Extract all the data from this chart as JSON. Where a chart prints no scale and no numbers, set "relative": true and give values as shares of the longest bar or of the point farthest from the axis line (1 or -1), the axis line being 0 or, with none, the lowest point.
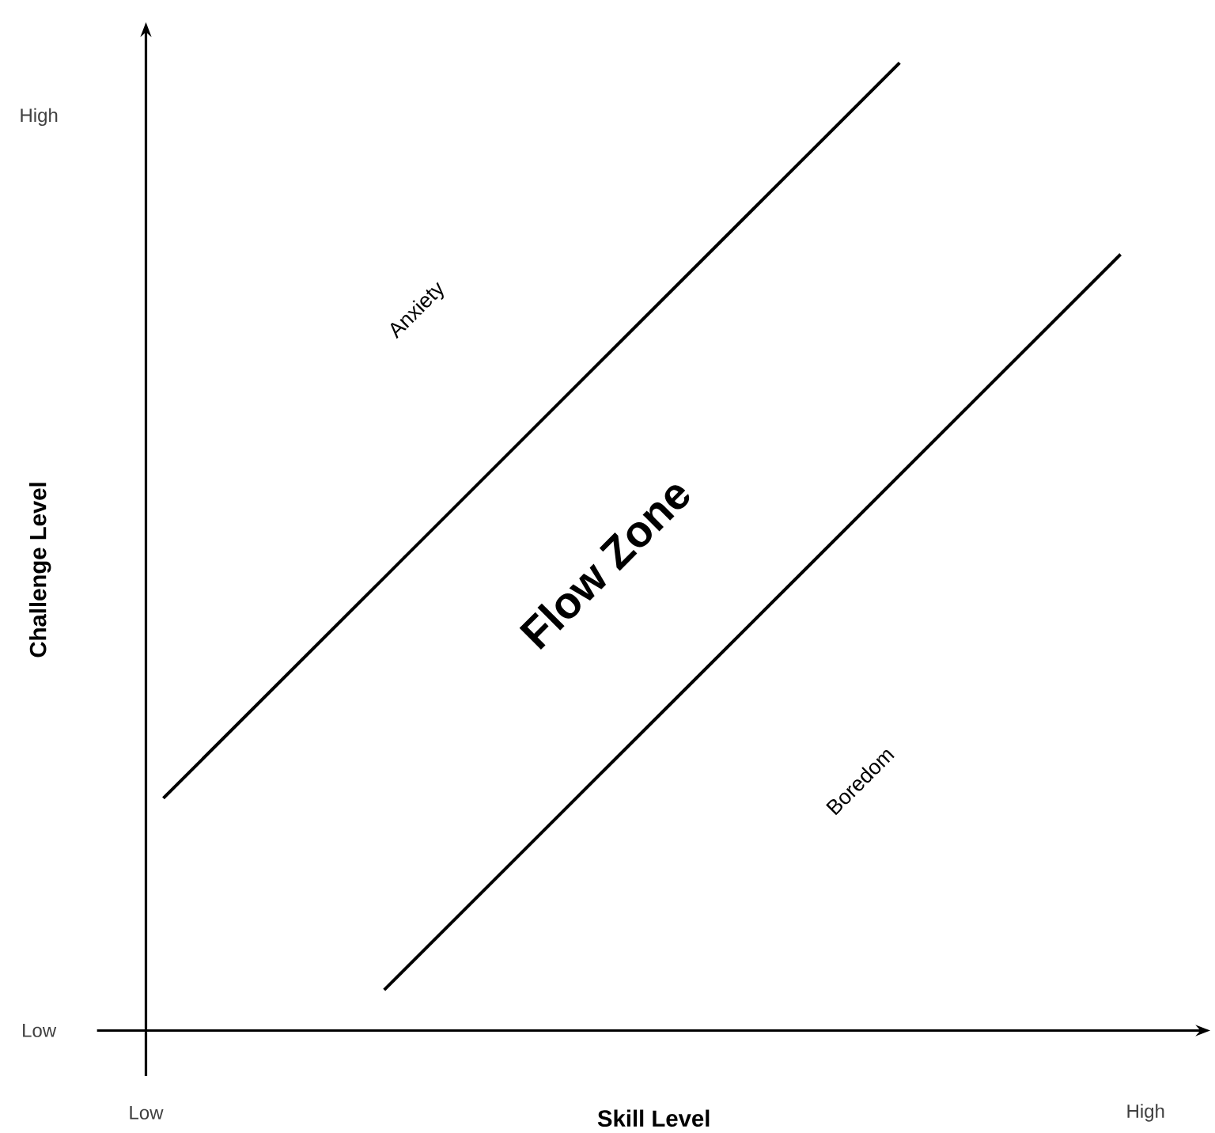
{
  "chart_data": {
    "type": "line",
    "xlabel": "Skill Level",
    "ylabel": "Challenge Level",
    "relative": true,
    "categories": [
      null,
      null,
      null,
      null,
      null,
      null,
      null,
      null,
      null,
      null,
      null,
      null,
      null,
      null
    ],
    "series": [
      {
        "color": "#000000",
        "values": [
          0.24,
          0.316,
          0.392,
          0.468,
          0.544,
          0.62,
          0.696,
          0.772,
          0.848,
          0.924,
          1,
          null,
          null,
          null
        ]
      },
      {
        "color": "#000000",
        "values": [
          null,
          null,
          null,
          0.042,
          0.118,
          0.194,
          0.27,
          0.346,
          0.422,
          0.498,
          0.574,
          0.65,
          0.726,
          0.802
        ]
      }
    ],
    "annotations": [
      "Anxiety",
      "Flow Zone",
      "Boredom",
      "Low",
      "High",
      "Low",
      "High"
    ],
    "marker": "none",
    "line_style": "solid"
  }
}
